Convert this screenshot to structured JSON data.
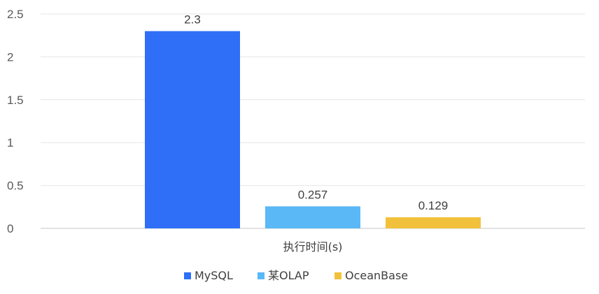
{
  "chart_data": {
    "type": "bar",
    "categories": [
      "执行时间(s)"
    ],
    "series": [
      {
        "name": "MySQL",
        "values": [
          2.3
        ],
        "label": "2.3",
        "color": "#2f6ef6"
      },
      {
        "name": "某OLAP",
        "values": [
          0.257
        ],
        "label": "0.257",
        "color": "#5ab8f7"
      },
      {
        "name": "OceanBase",
        "values": [
          0.129
        ],
        "label": "0.129",
        "color": "#f2c13b"
      }
    ],
    "title": "",
    "xlabel": "",
    "ylabel": "",
    "ylim": [
      0,
      2.5
    ],
    "yticks": [
      {
        "value": 0,
        "label": "0"
      },
      {
        "value": 0.5,
        "label": "0.5"
      },
      {
        "value": 1,
        "label": "1"
      },
      {
        "value": 1.5,
        "label": "1.5"
      },
      {
        "value": 2,
        "label": "2"
      },
      {
        "value": 2.5,
        "label": "2.5"
      }
    ],
    "grid": true,
    "legend_position": "bottom"
  }
}
